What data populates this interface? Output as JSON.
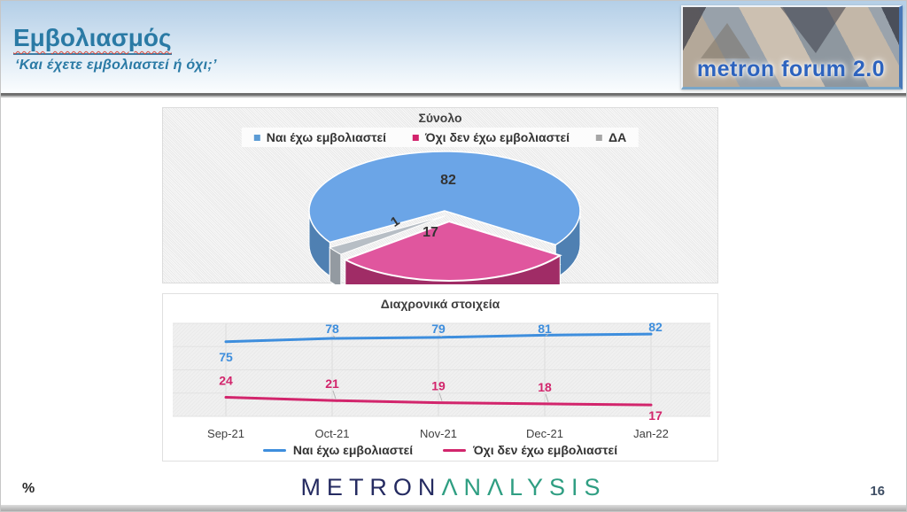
{
  "header": {
    "title": "Εμβολιασμός",
    "subtitle": "‘Και έχετε εμβολιαστεί ή όχι;’",
    "logo_text": "metron forum 2.0"
  },
  "pie_panel": {
    "legend": [
      {
        "label": "Ναι έχω εμβολιαστεί",
        "color": "#5b9bd5"
      },
      {
        "label": "Όχι δεν έχω εμβολιαστεί",
        "color": "#d2246c"
      },
      {
        "label": "ΔΑ",
        "color": "#a6a6a6"
      }
    ]
  },
  "chart_data": [
    {
      "type": "pie",
      "title": "Σύνολο",
      "labels": [
        "Ναι έχω εμβολιαστεί",
        "Όχι δεν έχω εμβολιαστεί",
        "ΔΑ"
      ],
      "values": [
        82,
        17,
        1
      ],
      "colors": [
        "#6ba5e7",
        "#e0569e",
        "#b7bec5"
      ],
      "style": "3d-exploded"
    },
    {
      "type": "line",
      "title": "Διαχρονικά στοιχεία",
      "categories": [
        "Sep-21",
        "Oct-21",
        "Nov-21",
        "Dec-21",
        "Jan-22"
      ],
      "series": [
        {
          "name": "Ναι έχω εμβολιαστεί",
          "color": "#3e8edd",
          "values": [
            75,
            78,
            79,
            81,
            82
          ]
        },
        {
          "name": "Όχι δεν έχω εμβολιαστεί",
          "color": "#d2256c",
          "values": [
            24,
            21,
            19,
            18,
            17
          ]
        }
      ],
      "ylim": [
        0,
        100
      ],
      "grid": true,
      "legend_position": "bottom"
    }
  ],
  "footer": {
    "percent_symbol": "%",
    "brand_primary": "METRON",
    "brand_secondary": "ΛNΛLYSIS",
    "page_number": "16"
  }
}
